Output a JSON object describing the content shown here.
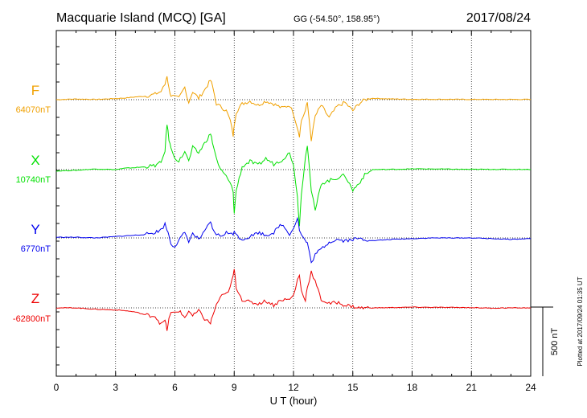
{
  "header": {
    "station": "Macquarie Island (MCQ)  [GA]",
    "coords": "GG (-54.50°, 158.95°)",
    "date": "2017/08/24"
  },
  "side_note": "Plotted at 2017/09/24 01:35 UT",
  "scale_label": "500 nT",
  "chart_data": {
    "type": "line",
    "title": "Macquarie Island (MCQ)  [GA]",
    "xlabel": "U T (hour)",
    "ylabel": "",
    "xlim": [
      0,
      24
    ],
    "x_ticks": [
      "0",
      "3",
      "6",
      "9",
      "12",
      "15",
      "18",
      "21",
      "24"
    ],
    "grid": true,
    "scale_bar_nT": 500,
    "series": [
      {
        "name": "F",
        "baseline_label": "64070nT",
        "color": "#f0a000",
        "x": [
          0,
          1,
          2,
          3,
          3.5,
          4,
          4.5,
          5,
          5.3,
          5.5,
          5.6,
          5.7,
          5.8,
          6,
          6.2,
          6.5,
          6.7,
          6.9,
          7.2,
          7.5,
          7.8,
          7.9,
          8.1,
          8.3,
          8.6,
          8.8,
          8.95,
          9,
          9.1,
          9.4,
          9.8,
          10.2,
          10.6,
          11,
          11.4,
          11.8,
          12,
          12.2,
          12.3,
          12.4,
          12.6,
          12.7,
          12.9,
          13.1,
          13.4,
          13.8,
          14.2,
          14.6,
          15,
          15.3,
          15.6,
          16,
          17,
          18,
          19,
          20,
          21,
          22,
          23,
          24
        ],
        "values": [
          0,
          5,
          2,
          8,
          12,
          20,
          25,
          40,
          60,
          110,
          175,
          80,
          30,
          20,
          10,
          90,
          -20,
          60,
          10,
          70,
          140,
          100,
          -30,
          -50,
          -80,
          -150,
          -260,
          -180,
          -90,
          -30,
          -10,
          -40,
          -10,
          -30,
          -60,
          -40,
          -100,
          -200,
          -260,
          -150,
          -80,
          -20,
          -290,
          -120,
          -40,
          -130,
          -50,
          -20,
          -80,
          -30,
          0,
          10,
          5,
          3,
          3,
          3,
          2,
          2,
          2,
          2
        ]
      },
      {
        "name": "X",
        "baseline_label": "10740nT",
        "color": "#00e000",
        "x": [
          0,
          1,
          2,
          3,
          3.5,
          4,
          4.5,
          5,
          5.3,
          5.5,
          5.6,
          5.7,
          5.8,
          6,
          6.2,
          6.5,
          6.7,
          6.9,
          7.2,
          7.5,
          7.8,
          7.9,
          8.1,
          8.3,
          8.6,
          8.8,
          8.95,
          9,
          9.1,
          9.4,
          9.8,
          10.2,
          10.6,
          11,
          11.4,
          11.8,
          12,
          12.2,
          12.3,
          12.4,
          12.6,
          12.7,
          12.9,
          13.1,
          13.4,
          13.8,
          14.2,
          14.6,
          15,
          15.3,
          15.6,
          16,
          17,
          18,
          19,
          20,
          21,
          22,
          23,
          24
        ],
        "values": [
          -10,
          -5,
          5,
          0,
          10,
          15,
          20,
          30,
          50,
          140,
          330,
          220,
          150,
          90,
          60,
          130,
          60,
          160,
          120,
          190,
          260,
          200,
          80,
          0,
          -50,
          -100,
          -160,
          -320,
          -150,
          20,
          60,
          30,
          80,
          40,
          70,
          120,
          40,
          -200,
          -400,
          -180,
          100,
          180,
          -150,
          -300,
          -100,
          -80,
          -60,
          -40,
          -150,
          -100,
          -40,
          0,
          2,
          5,
          5,
          3,
          2,
          2,
          2,
          2
        ]
      },
      {
        "name": "Y",
        "baseline_label": "6770nT",
        "color": "#0000ee",
        "x": [
          0,
          1,
          2,
          3,
          3.5,
          4,
          4.5,
          5,
          5.3,
          5.5,
          5.6,
          5.7,
          5.8,
          6,
          6.2,
          6.5,
          6.7,
          6.9,
          7.2,
          7.5,
          7.8,
          7.9,
          8.1,
          8.3,
          8.6,
          8.8,
          8.95,
          9,
          9.1,
          9.4,
          9.8,
          10.2,
          10.6,
          11,
          11.4,
          11.8,
          12,
          12.2,
          12.3,
          12.4,
          12.6,
          12.7,
          12.9,
          13.1,
          13.4,
          13.8,
          14.2,
          14.6,
          15,
          15.3,
          15.6,
          16,
          17,
          18,
          19,
          20,
          21,
          22,
          23,
          24
        ],
        "values": [
          5,
          5,
          0,
          10,
          15,
          20,
          25,
          40,
          60,
          100,
          60,
          20,
          -40,
          -60,
          -20,
          40,
          -20,
          30,
          -10,
          40,
          120,
          60,
          30,
          10,
          40,
          30,
          20,
          60,
          20,
          -10,
          10,
          40,
          20,
          40,
          100,
          30,
          70,
          150,
          60,
          20,
          -20,
          -40,
          -180,
          -120,
          -80,
          -30,
          -10,
          -20,
          -10,
          -5,
          -10,
          -20,
          -10,
          -5,
          0,
          0,
          0,
          -5,
          -10,
          -5
        ]
      },
      {
        "name": "Z",
        "baseline_label": "-62800nT",
        "color": "#ee0000",
        "x": [
          0,
          1,
          2,
          3,
          3.5,
          4,
          4.5,
          5,
          5.3,
          5.5,
          5.6,
          5.7,
          5.8,
          6,
          6.2,
          6.5,
          6.7,
          6.9,
          7.2,
          7.5,
          7.8,
          7.9,
          8.1,
          8.3,
          8.6,
          8.8,
          8.95,
          9,
          9.1,
          9.4,
          9.8,
          10.2,
          10.6,
          11,
          11.4,
          11.8,
          12,
          12.2,
          12.3,
          12.4,
          12.6,
          12.7,
          12.9,
          13.1,
          13.4,
          13.8,
          14.2,
          14.6,
          15,
          15.3,
          15.6,
          16,
          17,
          18,
          19,
          20,
          21,
          22,
          23,
          24
        ],
        "values": [
          0,
          0,
          -10,
          -15,
          -20,
          -30,
          -50,
          -60,
          -120,
          -90,
          -160,
          -80,
          -40,
          -30,
          -20,
          -70,
          -20,
          -60,
          -20,
          -80,
          -110,
          -60,
          20,
          80,
          100,
          150,
          230,
          280,
          150,
          60,
          40,
          30,
          50,
          20,
          60,
          60,
          90,
          200,
          240,
          120,
          60,
          150,
          260,
          190,
          60,
          30,
          40,
          20,
          10,
          0,
          0,
          0,
          2,
          5,
          4,
          3,
          2,
          -2,
          0,
          0
        ]
      }
    ]
  }
}
